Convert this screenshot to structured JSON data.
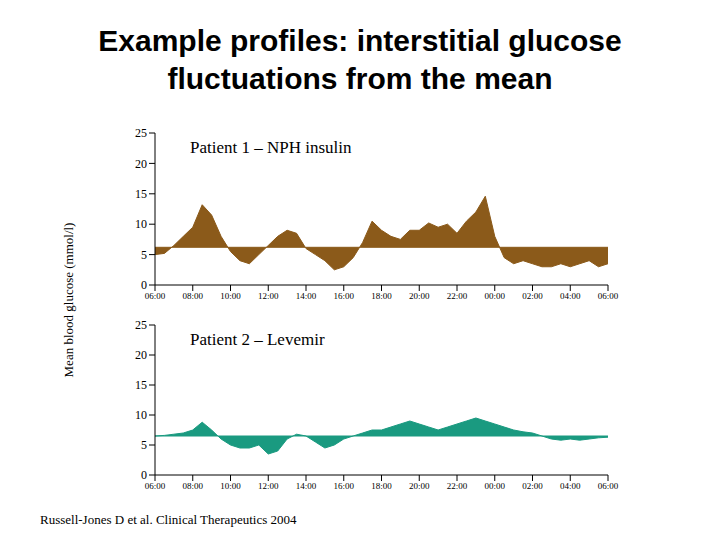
{
  "title": "Example profiles: interstitial glucose fluctuations from the mean",
  "y_label": "Mean blood glucose (mmol/l)",
  "source": "Russell-Jones D et al. Clinical Therapeutics 2004",
  "chart_data": [
    {
      "type": "area",
      "title": "Patient 1 – NPH insulin",
      "color": "#8b5a1a",
      "mean": 6.2,
      "x": [
        6,
        6.5,
        7,
        7.5,
        8,
        8.5,
        9,
        9.5,
        10,
        10.5,
        11,
        11.5,
        12,
        12.5,
        13,
        13.5,
        14,
        14.5,
        15,
        15.5,
        16,
        16.5,
        17,
        17.5,
        18,
        18.5,
        19,
        19.5,
        20,
        20.5,
        21,
        21.5,
        22,
        22.5,
        23,
        23.5,
        24,
        24.5,
        25,
        25.5,
        26,
        26.5,
        27,
        27.5,
        28,
        28.5,
        29,
        29.5,
        30
      ],
      "values": [
        5.0,
        5.2,
        6.5,
        8.0,
        9.5,
        13.2,
        11.5,
        8.0,
        5.5,
        4.0,
        3.5,
        5.0,
        6.5,
        8.0,
        9.0,
        8.5,
        6.0,
        5.0,
        4.0,
        2.5,
        3.0,
        4.5,
        7.0,
        10.5,
        9.0,
        8.0,
        7.5,
        9.0,
        9.0,
        10.2,
        9.5,
        10.0,
        8.5,
        10.5,
        12.0,
        14.6,
        8.0,
        4.5,
        3.5,
        4.0,
        3.5,
        3.0,
        3.0,
        3.5,
        3.0,
        3.5,
        4.0,
        3.0,
        3.5
      ],
      "xlim": [
        6,
        30
      ],
      "xticks": [
        {
          "value": 6,
          "label": "06:00"
        },
        {
          "value": 8,
          "label": "08:00"
        },
        {
          "value": 10,
          "label": "10:00"
        },
        {
          "value": 12,
          "label": "12:00"
        },
        {
          "value": 14,
          "label": "14:00"
        },
        {
          "value": 16,
          "label": "16:00"
        },
        {
          "value": 18,
          "label": "18:00"
        },
        {
          "value": 20,
          "label": "20:00"
        },
        {
          "value": 22,
          "label": "22:00"
        },
        {
          "value": 24,
          "label": "00:00"
        },
        {
          "value": 26,
          "label": "02:00"
        },
        {
          "value": 28,
          "label": "04:00"
        },
        {
          "value": 30,
          "label": "06:00"
        }
      ],
      "ylim": [
        0,
        25
      ],
      "yticks": [
        0,
        5,
        10,
        15,
        20,
        25
      ]
    },
    {
      "type": "area",
      "title": "Patient 2 – Levemir",
      "color": "#1a9a80",
      "mean": 6.5,
      "x": [
        6,
        6.5,
        7,
        7.5,
        8,
        8.5,
        9,
        9.5,
        10,
        10.5,
        11,
        11.5,
        12,
        12.5,
        13,
        13.5,
        14,
        14.5,
        15,
        15.5,
        16,
        16.5,
        17,
        17.5,
        18,
        18.5,
        19,
        19.5,
        20,
        20.5,
        21,
        21.5,
        22,
        22.5,
        23,
        23.5,
        24,
        24.5,
        25,
        25.5,
        26,
        26.5,
        27,
        27.5,
        28,
        28.5,
        29,
        29.5,
        30
      ],
      "values": [
        6.5,
        6.6,
        6.8,
        7.0,
        7.5,
        8.8,
        7.5,
        6.0,
        5.0,
        4.5,
        4.5,
        5.0,
        3.5,
        4.0,
        6.0,
        6.8,
        6.5,
        5.5,
        4.5,
        5.0,
        6.0,
        6.5,
        7.0,
        7.5,
        7.5,
        8.0,
        8.5,
        9.0,
        8.5,
        8.0,
        7.5,
        8.0,
        8.5,
        9.0,
        9.5,
        9.0,
        8.5,
        8.0,
        7.5,
        7.2,
        7.0,
        6.5,
        6.0,
        5.8,
        6.0,
        5.8,
        6.0,
        6.2,
        6.3
      ],
      "xlim": [
        6,
        30
      ],
      "xticks": [
        {
          "value": 6,
          "label": "06:00"
        },
        {
          "value": 8,
          "label": "08:00"
        },
        {
          "value": 10,
          "label": "10:00"
        },
        {
          "value": 12,
          "label": "12:00"
        },
        {
          "value": 14,
          "label": "14:00"
        },
        {
          "value": 16,
          "label": "16:00"
        },
        {
          "value": 18,
          "label": "18:00"
        },
        {
          "value": 20,
          "label": "20:00"
        },
        {
          "value": 22,
          "label": "22:00"
        },
        {
          "value": 24,
          "label": "00:00"
        },
        {
          "value": 26,
          "label": "02:00"
        },
        {
          "value": 28,
          "label": "04:00"
        },
        {
          "value": 30,
          "label": "06:00"
        }
      ],
      "ylim": [
        0,
        25
      ],
      "yticks": [
        0,
        5,
        10,
        15,
        20,
        25
      ]
    }
  ]
}
